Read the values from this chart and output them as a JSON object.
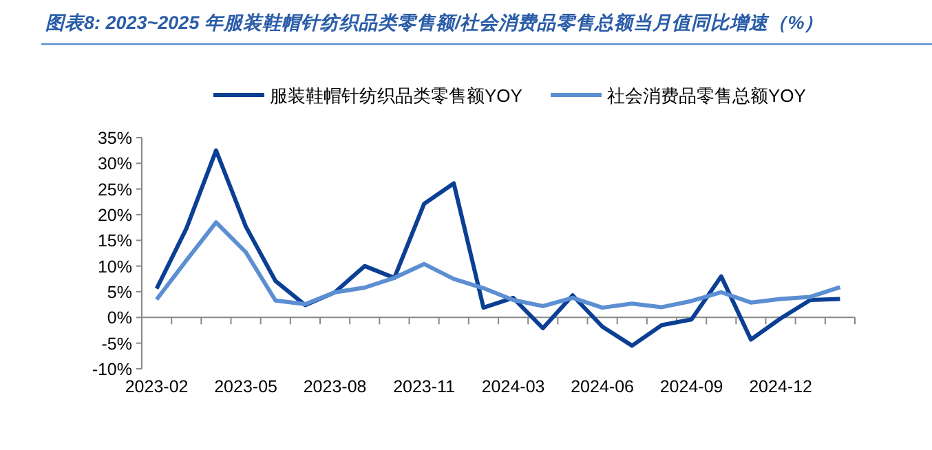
{
  "chart_data": {
    "type": "line",
    "title": "图表8:  2023~2025 年服装鞋帽针纺织品类零售额/社会消费品零售总额当月值同比增速（%）",
    "categories": [
      "2023-02",
      null,
      null,
      "2023-05",
      null,
      null,
      "2023-08",
      null,
      null,
      "2023-11",
      null,
      null,
      "2024-03",
      null,
      null,
      "2024-06",
      null,
      null,
      "2024-09",
      null,
      null,
      "2024-12",
      null,
      null
    ],
    "series": [
      {
        "name": "服装鞋帽针纺织品类零售额YOY",
        "color": "#0b3f94",
        "values": [
          5.6,
          17.3,
          32.5,
          17.7,
          7.1,
          2.4,
          4.9,
          10.0,
          7.7,
          22.1,
          26.1,
          1.9,
          3.8,
          -2.1,
          4.3,
          -1.8,
          -5.5,
          -1.5,
          -0.4,
          8.0,
          -4.3,
          -0.2,
          3.4,
          3.6
        ]
      },
      {
        "name": "社会消费品零售总额YOY",
        "color": "#5b8fd2",
        "values": [
          3.5,
          11.1,
          18.5,
          12.7,
          3.3,
          2.6,
          4.9,
          5.8,
          7.7,
          10.4,
          7.5,
          5.7,
          3.4,
          2.2,
          3.8,
          1.9,
          2.7,
          2.0,
          3.2,
          4.9,
          2.9,
          3.6,
          4.0,
          5.9
        ]
      }
    ],
    "ylim": [
      -10,
      35
    ],
    "yticks": [
      {
        "value": -10,
        "label": "-10%"
      },
      {
        "value": -5,
        "label": "-5%"
      },
      {
        "value": 0,
        "label": "0%"
      },
      {
        "value": 5,
        "label": "5%"
      },
      {
        "value": 10,
        "label": "10%"
      },
      {
        "value": 15,
        "label": "15%"
      },
      {
        "value": 20,
        "label": "20%"
      },
      {
        "value": 25,
        "label": "25%"
      },
      {
        "value": 30,
        "label": "30%"
      },
      {
        "value": 35,
        "label": "35%"
      }
    ],
    "legend": "top"
  }
}
